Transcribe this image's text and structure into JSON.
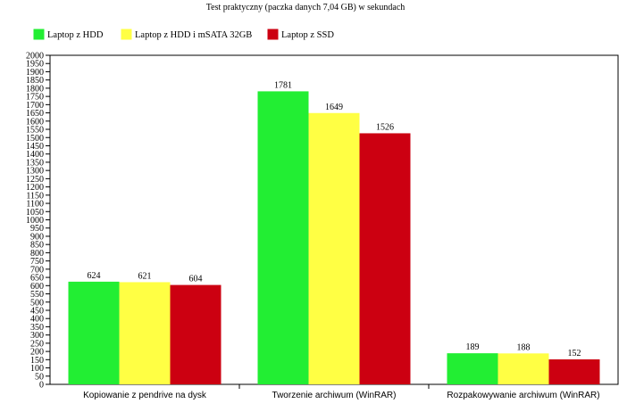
{
  "chart_data": {
    "type": "bar",
    "title": "Test praktyczny (paczka danych 7,04 GB) w sekundach",
    "categories": [
      "Kopiowanie z pendrive na dysk",
      "Tworzenie archiwum (WinRAR)",
      "Rozpakowywanie archiwum (WinRAR)"
    ],
    "series": [
      {
        "name": "Laptop z HDD",
        "color": "#22ee33",
        "values": [
          624,
          1781,
          189
        ]
      },
      {
        "name": "Laptop z HDD i mSATA 32GB",
        "color": "#ffff44",
        "values": [
          621,
          1649,
          188
        ]
      },
      {
        "name": "Laptop z SSD",
        "color": "#cc0011",
        "values": [
          604,
          1526,
          152
        ]
      }
    ],
    "ylim": [
      0,
      2000
    ],
    "ytick_step": 50,
    "grid": false,
    "legend_position": "top-left",
    "data_labels": true
  }
}
